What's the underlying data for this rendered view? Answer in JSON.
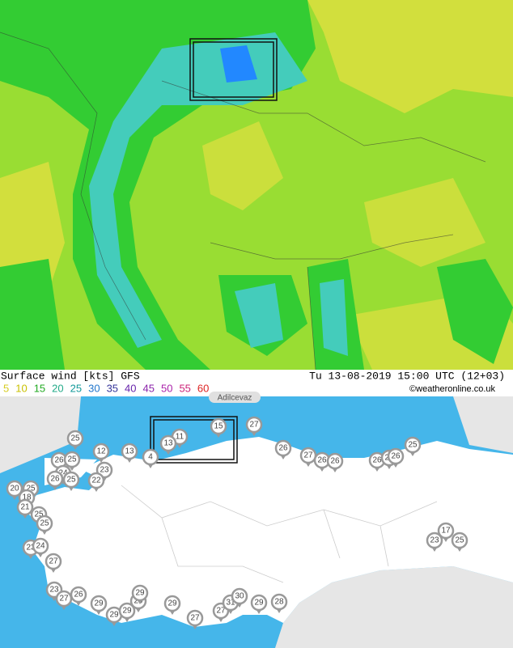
{
  "caption": {
    "title": "Surface wind [kts] GFS",
    "time": "Tu 13-08-2019 15:00 UTC (12+03)",
    "credit": "©weatheronline.co.uk"
  },
  "scale": {
    "values": [
      5,
      10,
      15,
      20,
      25,
      30,
      35,
      40,
      45,
      50,
      55,
      60
    ],
    "colors": [
      "#d6cc20",
      "#c9c000",
      "#22aa22",
      "#22aa88",
      "#139a9a",
      "#2277cc",
      "#333399",
      "#6622aa",
      "#8a22aa",
      "#aa22aa",
      "#cc2277",
      "#dd2222"
    ]
  },
  "place_label": "Adilcevaz",
  "pins": [
    15,
    11,
    13,
    27,
    25,
    12,
    13,
    4,
    26,
    25,
    24,
    23,
    26,
    25,
    22,
    20,
    25,
    18,
    21,
    25,
    25,
    23,
    24,
    27,
    23,
    27,
    26,
    29,
    29,
    29,
    29,
    29,
    29,
    27,
    27,
    31,
    30,
    29,
    28,
    26,
    27,
    26,
    26,
    26,
    26,
    26,
    25,
    17,
    23,
    25
  ]
}
